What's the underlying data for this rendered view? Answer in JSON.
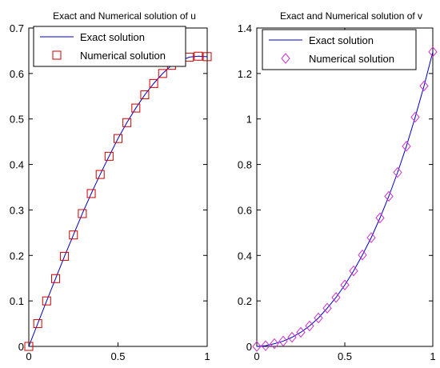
{
  "chart_data": [
    {
      "type": "line",
      "title": "Exact and Numerical solution of u",
      "xlabel": "",
      "ylabel": "",
      "xlim": [
        0,
        1
      ],
      "ylim": [
        0,
        0.7
      ],
      "x_ticks": [
        "0",
        "0.5",
        "1"
      ],
      "y_ticks": [
        "0",
        "0.1",
        "0.2",
        "0.3",
        "0.4",
        "0.5",
        "0.6",
        "0.7"
      ],
      "legend_position": "top",
      "series": [
        {
          "name": "Exact solution",
          "style": "line",
          "color": "#0000c8",
          "x": [
            0,
            0.05,
            0.1,
            0.15,
            0.2,
            0.25,
            0.3,
            0.35,
            0.4,
            0.45,
            0.5,
            0.55,
            0.6,
            0.65,
            0.7,
            0.75,
            0.8,
            0.85,
            0.9,
            0.95,
            1.0
          ],
          "y": [
            0,
            0.05,
            0.1,
            0.149,
            0.198,
            0.245,
            0.292,
            0.336,
            0.378,
            0.418,
            0.457,
            0.492,
            0.524,
            0.553,
            0.578,
            0.6,
            0.618,
            0.628,
            0.636,
            0.638,
            0.637
          ]
        },
        {
          "name": "Numerical solution",
          "style": "square-markers",
          "color": "#cc0000",
          "x": [
            0,
            0.05,
            0.1,
            0.15,
            0.2,
            0.25,
            0.3,
            0.35,
            0.4,
            0.45,
            0.5,
            0.55,
            0.6,
            0.65,
            0.7,
            0.75,
            0.8,
            0.85,
            0.9,
            0.95,
            1.0
          ],
          "y": [
            0,
            0.05,
            0.1,
            0.149,
            0.198,
            0.245,
            0.292,
            0.336,
            0.378,
            0.418,
            0.457,
            0.492,
            0.524,
            0.553,
            0.578,
            0.6,
            0.618,
            0.628,
            0.636,
            0.638,
            0.637
          ]
        }
      ]
    },
    {
      "type": "line",
      "title": "Exact and Numerical solution of v",
      "xlabel": "",
      "ylabel": "",
      "xlim": [
        0,
        1
      ],
      "ylim": [
        0,
        1.4
      ],
      "x_ticks": [
        "0",
        "0.5",
        "1"
      ],
      "y_ticks": [
        "0",
        "0.2",
        "0.4",
        "0.6",
        "0.8",
        "1",
        "1.2",
        "1.4"
      ],
      "legend_position": "top",
      "series": [
        {
          "name": "Exact solution",
          "style": "line",
          "color": "#0000c8",
          "x": [
            0,
            0.05,
            0.1,
            0.15,
            0.2,
            0.25,
            0.3,
            0.35,
            0.4,
            0.45,
            0.5,
            0.55,
            0.6,
            0.65,
            0.7,
            0.75,
            0.8,
            0.85,
            0.9,
            0.95,
            1.0
          ],
          "y": [
            0,
            0.003,
            0.012,
            0.023,
            0.04,
            0.062,
            0.09,
            0.125,
            0.168,
            0.215,
            0.27,
            0.332,
            0.402,
            0.478,
            0.565,
            0.66,
            0.765,
            0.88,
            1.008,
            1.145,
            1.295
          ]
        },
        {
          "name": "Numerical solution",
          "style": "diamond-markers",
          "color": "#cc33cc",
          "x": [
            0,
            0.05,
            0.1,
            0.15,
            0.2,
            0.25,
            0.3,
            0.35,
            0.4,
            0.45,
            0.5,
            0.55,
            0.6,
            0.65,
            0.7,
            0.75,
            0.8,
            0.85,
            0.9,
            0.95,
            1.0
          ],
          "y": [
            0,
            0.003,
            0.012,
            0.023,
            0.04,
            0.062,
            0.09,
            0.125,
            0.168,
            0.215,
            0.27,
            0.332,
            0.402,
            0.478,
            0.565,
            0.66,
            0.765,
            0.88,
            1.008,
            1.145,
            1.295
          ]
        }
      ]
    }
  ]
}
